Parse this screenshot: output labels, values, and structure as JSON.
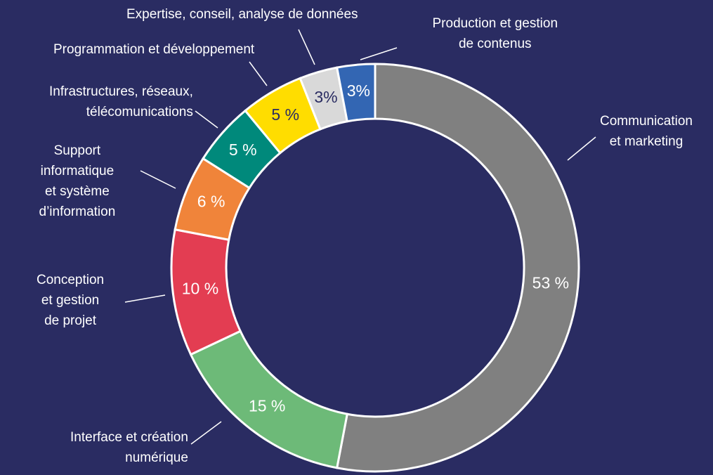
{
  "chart_data": {
    "type": "donut",
    "categories": [
      "Communication\net marketing",
      "Interface et création\nnumérique",
      "Conception\net gestion\nde projet",
      "Support\ninformatique\net système\nd’information",
      "Infrastructures, réseaux,\ntélécomunications",
      "Programmation et développement",
      "Expertise, conseil, analyse de données",
      "Production et gestion\nde contenus"
    ],
    "values": [
      53,
      15,
      10,
      6,
      5,
      5,
      3,
      3
    ],
    "value_labels": [
      "53 %",
      "15 %",
      "10 %",
      "6 %",
      "5 %",
      "5 %",
      "3%",
      "3%"
    ],
    "colors": [
      "#808080",
      "#6dba78",
      "#e33d52",
      "#f0843a",
      "#00897b",
      "#ffdd00",
      "#d9d9d9",
      "#3366b3"
    ]
  }
}
